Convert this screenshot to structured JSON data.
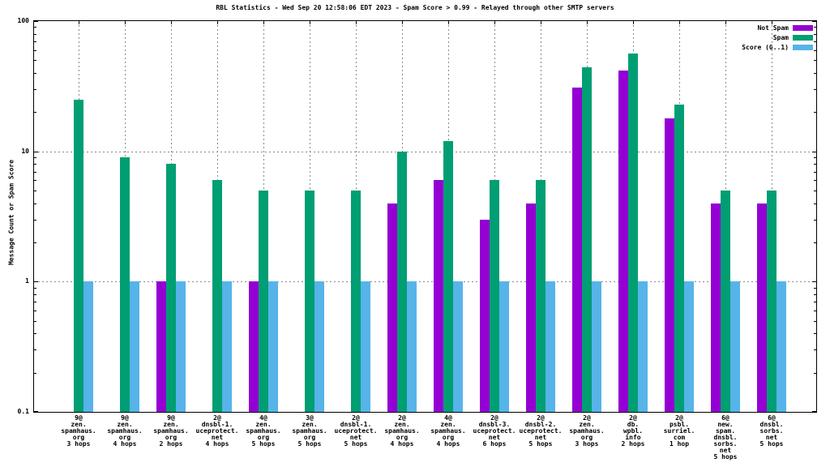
{
  "y_axis": {
    "label": "Message Count or Spam Score",
    "ticks": [
      {
        "label": "100",
        "value": 100
      },
      {
        "label": "10",
        "value": 10
      },
      {
        "label": "1",
        "value": 1
      },
      {
        "label": "0.1",
        "value": 0.1
      }
    ]
  },
  "legend": {
    "position": "top-right",
    "items": [
      {
        "label": "Not Spam",
        "color": "#9400d3"
      },
      {
        "label": "Spam",
        "color": "#009e73"
      },
      {
        "label": "Score (0..1)",
        "color": "#56b4e9"
      }
    ]
  },
  "chart_data": {
    "type": "bar",
    "title": "RBL Statistics - Wed Sep 20 12:58:06 EDT 2023 - Spam Score > 0.99 - Relayed through other SMTP servers",
    "xlabel": "",
    "ylabel": "Message Count or Spam Score",
    "y_scale": "log",
    "ylim": [
      0.1,
      100
    ],
    "grid": true,
    "legend_position": "top-right",
    "categories": [
      "9@\nzen.\nspamhaus.\norg\n3 hops",
      "9@\nzen.\nspamhaus.\norg\n4 hops",
      "9@\nzen.\nspamhaus.\norg\n2 hops",
      "2@\ndnsbl-1.\nuceprotect.\nnet\n4 hops",
      "4@\nzen.\nspamhaus.\norg\n5 hops",
      "3@\nzen.\nspamhaus.\norg\n5 hops",
      "2@\ndnsbl-1.\nuceprotect.\nnet\n5 hops",
      "2@\nzen.\nspamhaus.\norg\n4 hops",
      "4@\nzen.\nspamhaus.\norg\n4 hops",
      "2@\ndnsbl-3.\nuceprotect.\nnet\n6 hops",
      "2@\ndnsbl-2.\nuceprotect.\nnet\n5 hops",
      "2@\nzen.\nspamhaus.\norg\n3 hops",
      "2@\ndb.\nwpbl.\ninfo\n2 hops",
      "2@\npsbl.\nsurriel.\ncom\n1 hop",
      "6@\nnew.\nspam.\ndnsbl.\nsorbs.\nnet\n5 hops",
      "6@\ndnsbl.\nsorbs.\nnet\n5 hops"
    ],
    "series": [
      {
        "name": "Not Spam",
        "color": "#9400d3",
        "values": [
          0,
          0,
          1,
          0,
          1,
          0,
          0,
          4,
          6,
          3,
          4,
          31,
          42,
          18,
          4,
          4
        ]
      },
      {
        "name": "Spam",
        "color": "#009e73",
        "values": [
          25,
          9,
          8,
          6,
          5,
          5,
          5,
          10,
          12,
          6,
          6,
          44,
          56,
          23,
          5,
          5
        ]
      },
      {
        "name": "Score (0..1)",
        "color": "#56b4e9",
        "values": [
          1,
          1,
          1,
          1,
          1,
          1,
          1,
          1,
          1,
          1,
          1,
          1,
          1,
          1,
          1,
          1
        ]
      }
    ]
  }
}
